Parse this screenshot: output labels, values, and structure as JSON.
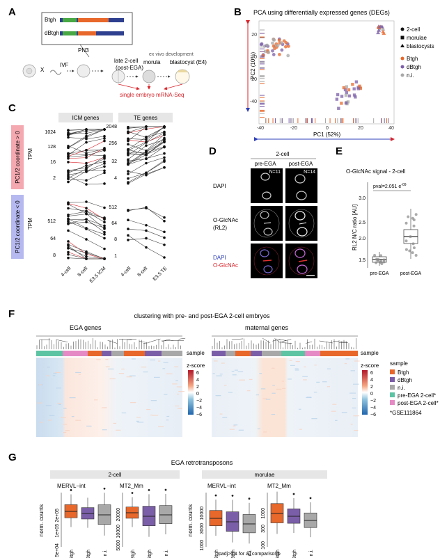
{
  "panels": {
    "A": {
      "label": "A",
      "constructs": [
        "Btgh",
        "dBtgh"
      ],
      "pn3": "PN3",
      "ivf": "IVF",
      "x": "X",
      "stage_late2cell": "late 2-cell",
      "stage_late2cell_sub": "(post-EGA)",
      "stage_morula": "morula",
      "stage_blastocyst": "blastocyst (E4)",
      "exvivo": "ex vivo development",
      "seq": "single embryo mRNA-Seq"
    },
    "B": {
      "label": "B",
      "title": "PCA using differentially expressed genes (DEGs)",
      "xlabel": "PC1 (52%)",
      "ylabel": "PC2 (10%)",
      "xticks": [
        "-40",
        "-20",
        "0",
        "20",
        "40"
      ],
      "yticks": [
        "20",
        "0",
        "-20",
        "-40"
      ],
      "legend_shapes": [
        "2-cell",
        "morulae",
        "blastocysts"
      ],
      "legend_groups": [
        "Btgh",
        "dBtgh",
        "n.i."
      ]
    },
    "C": {
      "label": "C",
      "col1": "ICM genes",
      "col2": "TE genes",
      "row1": "PC1/2 coordinate > 0",
      "row2": "PC1/2 coordinate < 0",
      "ylabel": "TPM",
      "yticks_icm_top": [
        "1024",
        "128",
        "16",
        "2"
      ],
      "yticks_te_top": [
        "2048",
        "256",
        "32",
        "4"
      ],
      "yticks_icm_bot": [
        "512",
        "64",
        "8"
      ],
      "yticks_te_bot": [
        "512",
        "64",
        "8",
        "1"
      ],
      "x_icm": [
        "4-cell",
        "8-cell",
        "E3.5 ICM"
      ],
      "x_te": [
        "4-cell",
        "8-cell",
        "E3.5 TE"
      ]
    },
    "D": {
      "label": "D",
      "header": "2-cell",
      "col1": "pre-EGA",
      "col2": "post-EGA",
      "n1": "N=11",
      "n2": "N=14",
      "row1": "DAPI",
      "row2a": "O-GlcNAc",
      "row2b": "(RL2)",
      "row3a": "DAPI",
      "row3b": "O-GlcNAc"
    },
    "E": {
      "label": "E",
      "title": "O-GlcNAc signal - 2-cell",
      "pval": "pval=2.051 e",
      "pval_exp": "-09",
      "ylabel": "RL2 N/C ratio [AU]",
      "yticks": [
        "3.0",
        "2.5",
        "2.0",
        "1.5"
      ],
      "xticks": [
        "pre-EGA",
        "post-EGA"
      ]
    },
    "F": {
      "label": "F",
      "title": "clustering with pre- and post-EGA 2-cell embryos",
      "sub1": "EGA genes",
      "sub2": "maternal genes",
      "sample": "sample",
      "zscore": "z-score",
      "zticks": [
        "6",
        "4",
        "2",
        "0",
        "−2",
        "−4",
        "−6"
      ],
      "legend_title": "sample",
      "legend_items": [
        "Btgh",
        "dBtgh",
        "n.i.",
        "pre-EGA 2-cell*",
        "post-EGA 2-cell*"
      ],
      "footnote": "*GSE111864"
    },
    "G": {
      "label": "G",
      "title": "EGA retrotransposons",
      "group1": "2-cell",
      "group2": "morulae",
      "p1": "MERVL−int",
      "p2": "MT2_Mm",
      "p3": "MERVL−int",
      "p4": "MT2_Mm",
      "ylabel": "norm. counts",
      "yt1": [
        "2e+05",
        "1e+05",
        "5e+04"
      ],
      "yt2": [
        "20000",
        "10000",
        "5000"
      ],
      "yt3": [
        "10000",
        "3000",
        "1000"
      ],
      "yt4": [
        "1000",
        "300",
        "100"
      ],
      "xticks": [
        "Btgh",
        "dBtgh",
        "n.i."
      ],
      "footnote": "padj>0.1 for all comparisons"
    }
  },
  "colors": {
    "btgh": "#e8672a",
    "dbtgh": "#7b5ea8",
    "ni": "#a8a8a8",
    "pre": "#5cc3a3",
    "post": "#e58ac4",
    "red": "#d8232a",
    "blue": "#2e3fb8"
  }
}
